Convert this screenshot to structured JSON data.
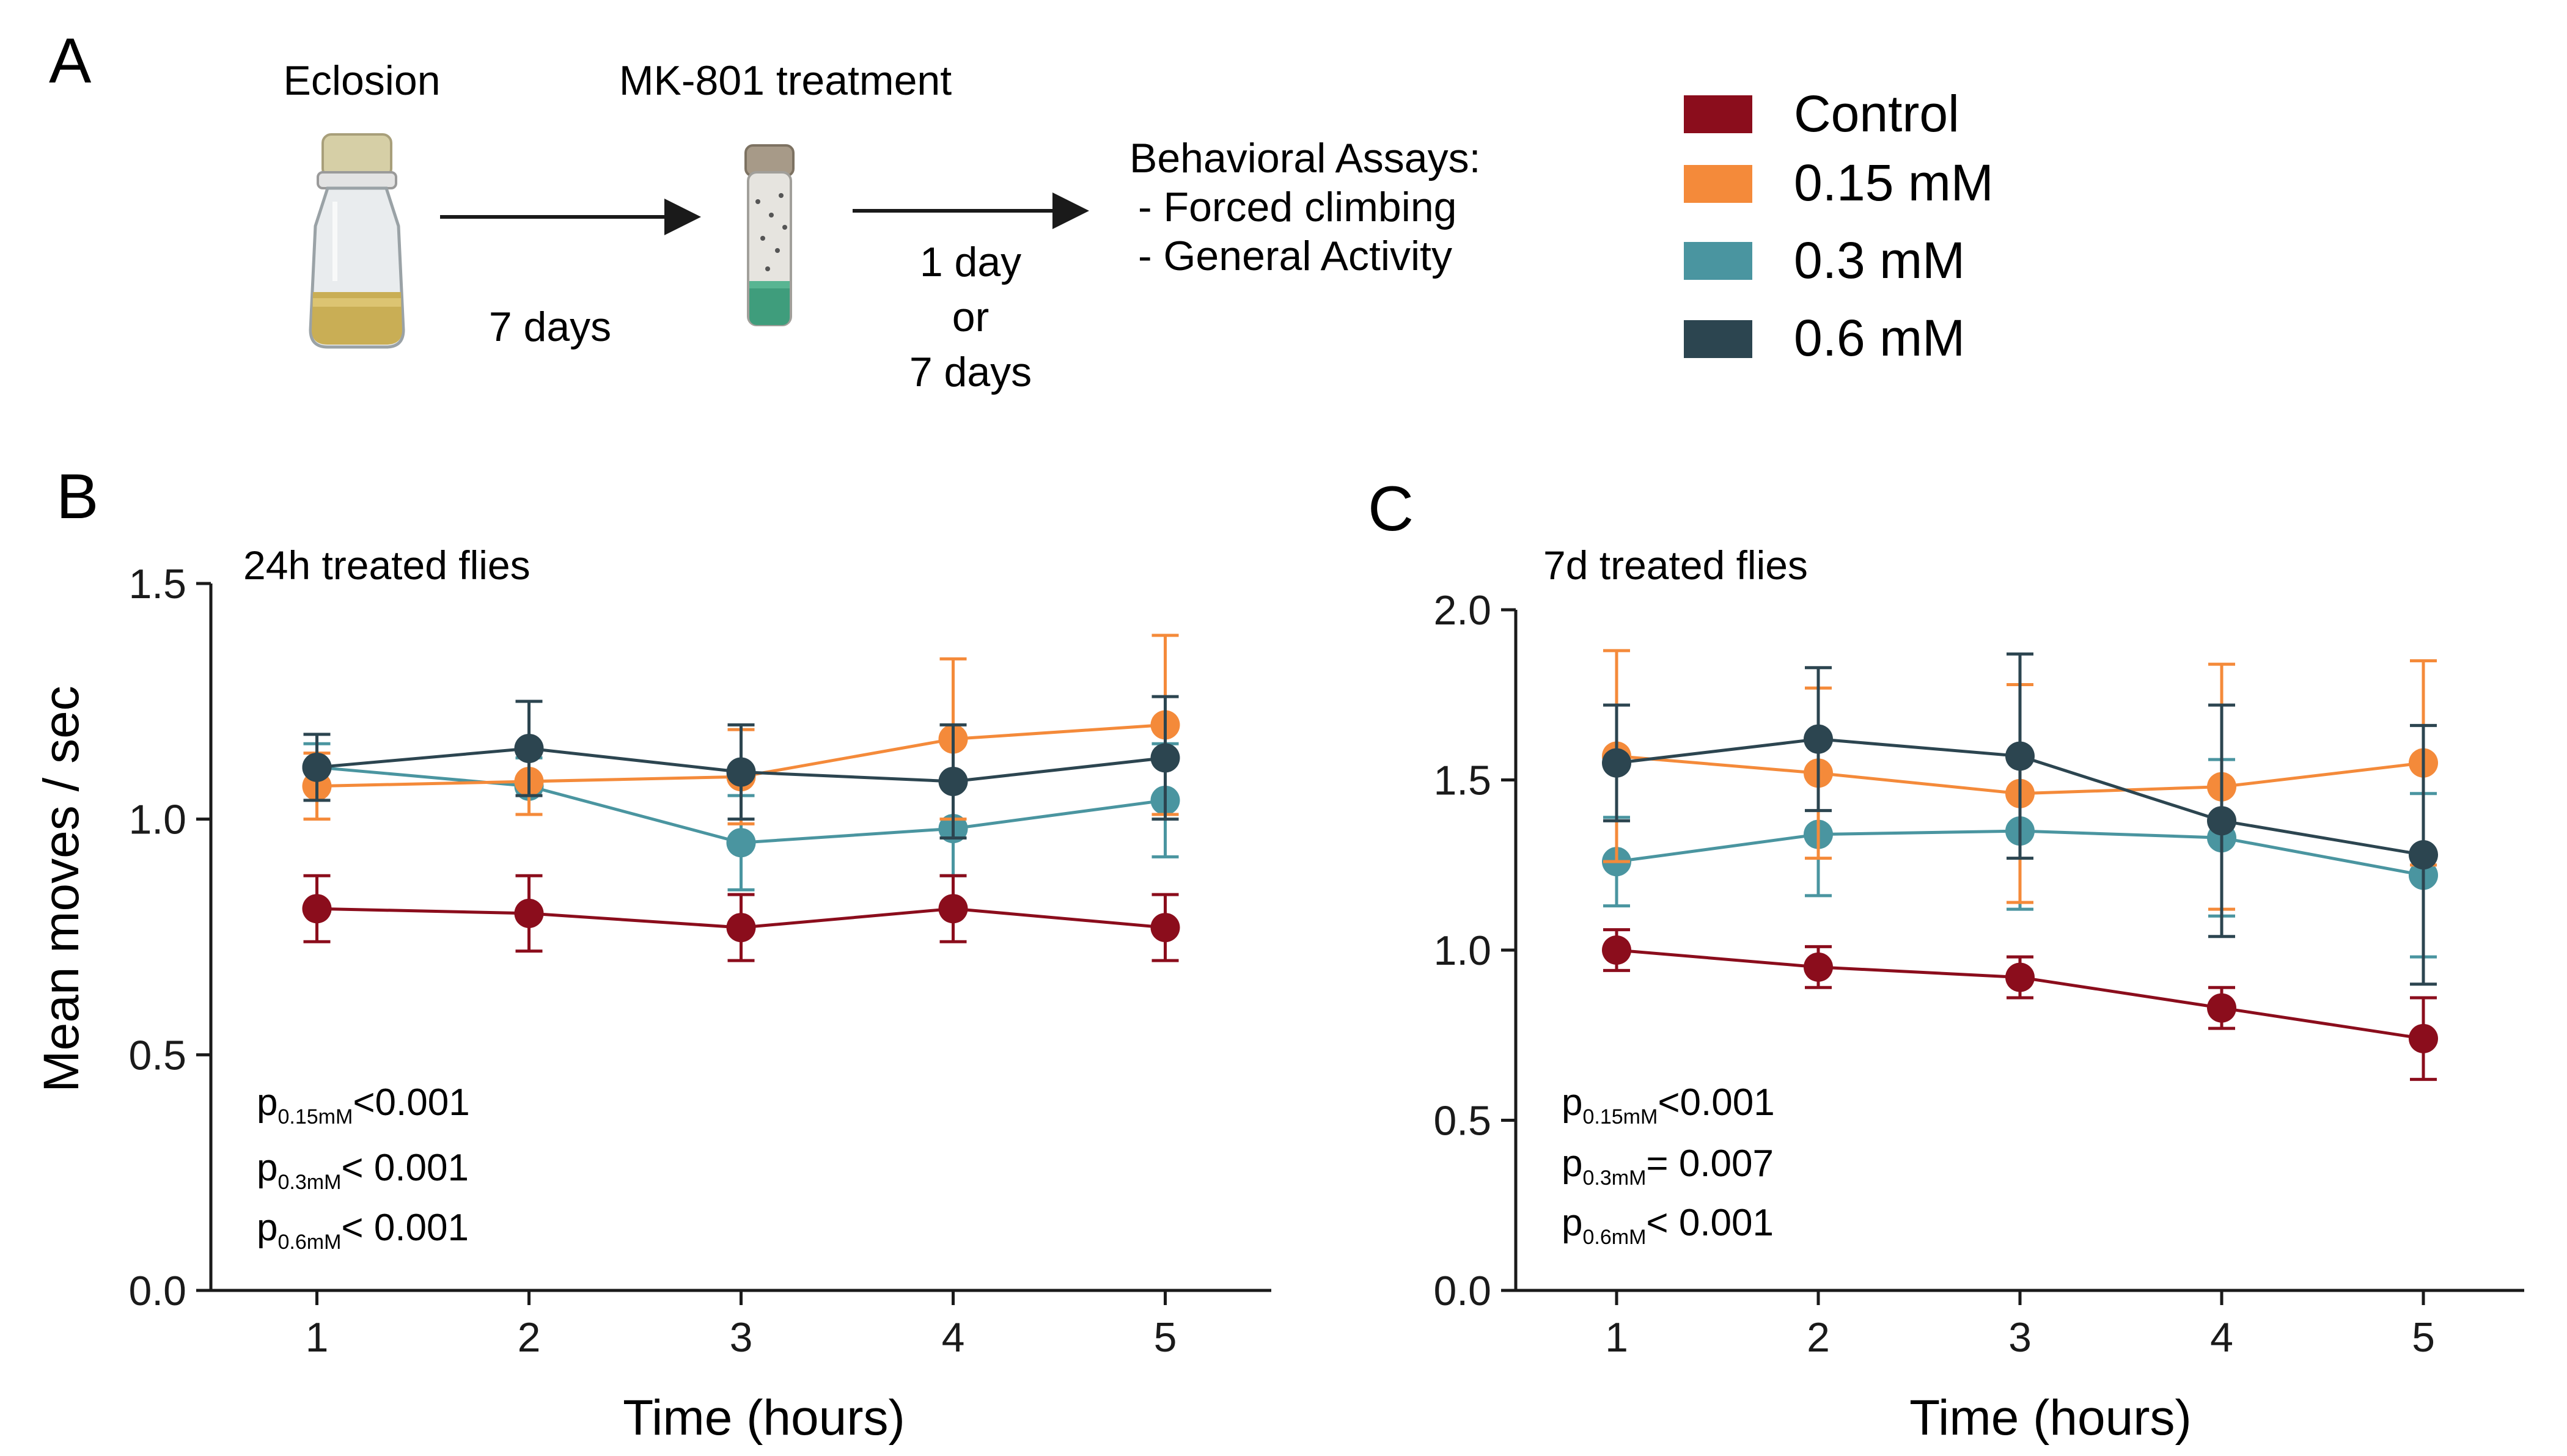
{
  "colors": {
    "control": "#8b0d1c",
    "mk_015": "#f48a3a",
    "mk_03": "#4a95a0",
    "mk_06": "#2c4550",
    "axis": "#1a1a1a"
  },
  "panel_a": {
    "letter": "A",
    "eclosion": "Eclosion",
    "treatment": "MK-801 treatment",
    "arrow1_label": "7 days",
    "arrow2_label_1": "1 day",
    "arrow2_label_2": "or",
    "arrow2_label_3": "7 days",
    "assays_title": "Behavioral Assays:",
    "assay_1": "- Forced climbing",
    "assay_2": "- General Activity",
    "icons": [
      "bottle-icon",
      "vial-icon"
    ]
  },
  "legend": [
    {
      "label": "Control",
      "color": "#8b0d1c"
    },
    {
      "label": "0.15 mM",
      "color": "#f48a3a"
    },
    {
      "label": "0.3 mM",
      "color": "#4a95a0"
    },
    {
      "label": "0.6 mM",
      "color": "#2c4550"
    }
  ],
  "chart_data": [
    {
      "panel": "B",
      "type": "line",
      "title": "24h treated flies",
      "xlabel": "Time (hours)",
      "ylabel": "Mean moves / sec",
      "x": [
        1,
        2,
        3,
        4,
        5
      ],
      "xlim": [
        0.5,
        5.5
      ],
      "ylim": [
        0,
        1.5
      ],
      "yticks": [
        "0.0",
        "0.5",
        "1.0",
        "1.5"
      ],
      "xticks": [
        "1",
        "2",
        "3",
        "4",
        "5"
      ],
      "series": [
        {
          "name": "0.3 mM",
          "color": "#4a95a0",
          "values": [
            1.11,
            1.07,
            0.95,
            0.98,
            1.04
          ],
          "err": [
            0.05,
            0.06,
            0.1,
            0.1,
            0.12
          ]
        },
        {
          "name": "0.15 mM",
          "color": "#f48a3a",
          "values": [
            1.07,
            1.08,
            1.09,
            1.17,
            1.2
          ],
          "err": [
            0.07,
            0.07,
            0.1,
            0.17,
            0.19
          ]
        },
        {
          "name": "0.6 mM",
          "color": "#2c4550",
          "values": [
            1.11,
            1.15,
            1.1,
            1.08,
            1.13
          ],
          "err": [
            0.07,
            0.1,
            0.1,
            0.12,
            0.13
          ]
        },
        {
          "name": "Control",
          "color": "#8b0d1c",
          "values": [
            0.81,
            0.8,
            0.77,
            0.81,
            0.77
          ],
          "err": [
            0.07,
            0.08,
            0.07,
            0.07,
            0.07
          ]
        }
      ],
      "annotations": [
        {
          "p": "p",
          "sub": "0.15mM",
          "text": "<0.001"
        },
        {
          "p": "p",
          "sub": "0.3mM",
          "text": "< 0.001"
        },
        {
          "p": "p",
          "sub": "0.6mM",
          "text": "< 0.001"
        }
      ]
    },
    {
      "panel": "C",
      "type": "line",
      "title": "7d treated flies",
      "xlabel": "Time (hours)",
      "ylabel": "",
      "x": [
        1,
        2,
        3,
        4,
        5
      ],
      "xlim": [
        0.5,
        5.5
      ],
      "ylim": [
        0,
        2.0
      ],
      "yticks": [
        "0.0",
        "0.5",
        "1.0",
        "1.5",
        "2.0"
      ],
      "xticks": [
        "1",
        "2",
        "3",
        "4",
        "5"
      ],
      "series": [
        {
          "name": "0.3 mM",
          "color": "#4a95a0",
          "values": [
            1.26,
            1.34,
            1.35,
            1.33,
            1.22
          ],
          "err": [
            0.13,
            0.18,
            0.23,
            0.23,
            0.24
          ]
        },
        {
          "name": "0.15 mM",
          "color": "#f48a3a",
          "values": [
            1.57,
            1.52,
            1.46,
            1.48,
            1.55
          ],
          "err": [
            0.31,
            0.25,
            0.32,
            0.36,
            0.3
          ]
        },
        {
          "name": "0.6 mM",
          "color": "#2c4550",
          "values": [
            1.55,
            1.62,
            1.57,
            1.38,
            1.28
          ],
          "err": [
            0.17,
            0.21,
            0.3,
            0.34,
            0.38
          ]
        },
        {
          "name": "Control",
          "color": "#8b0d1c",
          "values": [
            1.0,
            0.95,
            0.92,
            0.83,
            0.74
          ],
          "err": [
            0.06,
            0.06,
            0.06,
            0.06,
            0.12
          ]
        }
      ],
      "annotations": [
        {
          "p": "p",
          "sub": "0.15mM",
          "text": "<0.001"
        },
        {
          "p": "p",
          "sub": "0.3mM",
          "text": "= 0.007"
        },
        {
          "p": "p",
          "sub": "0.6mM",
          "text": "< 0.001"
        }
      ]
    }
  ]
}
